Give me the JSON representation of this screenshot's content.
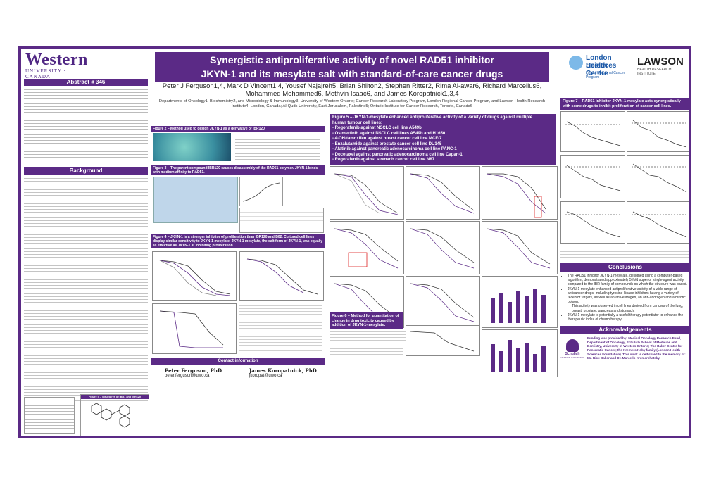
{
  "header": {
    "logo_left": "Western",
    "logo_left_sub": "UNIVERSITY · CANADA",
    "title_line1": "Synergistic antiproliferative activity of novel RAD51 inhibitor",
    "title_line2": "JKYN-1 and its mesylate salt with standard-of-care cancer drugs",
    "authors_line1": "Peter J Ferguson1,4, Mark D Vincent1,4, Yousef Najajreh5, Brian Shilton2, Stephen Ritter2, Rima Al-awar6, Richard Marcellus6,",
    "authors_line2": "Mohammed Mohammed6, Methvin Isaac6, and James Koropatnick1,3,4",
    "affiliations": "Departments of Oncology1, Biochemistry2, and Microbiology & Immunology3, University of Western Ontario; Cancer Research Laboratory Program, London Regional Cancer Program, and Lawson Health Research Institute4, London, Canada; Al-Quds University, East Jerusalem, Palestine5; Ontario Institute for Cancer Research, Toronto, Canada6",
    "logo_lhsc_line1": "London Health",
    "logo_lhsc_line2": "Sciences Centre",
    "logo_lhsc_sub": "London Regional Cancer Program",
    "logo_lawson": "LAWSON",
    "logo_lawson_sub": "HEALTH RESEARCH INSTITUTE"
  },
  "left": {
    "abstract_title": "Abstract # 346",
    "background_title": "Background"
  },
  "mid": {
    "fig2_title": "Figure 2 – Method used to design JKYN-1 as a derivative of IBR120",
    "fig3_title": "Figure 3 – The parent compound IBR120 causes disassembly of the RAD51 polymer. JKYN-1 binds with medium affinity to RAD51.",
    "fig4_title": "Figure 4 – JKYN-1 is a stronger inhibitor of proliferation than IBR120 and B02. Cultured cell lines display similar sensitivity to JKYN-1-mesylate. JKYN-1 mesylate, the salt form of JKYN-1, was equally as effective as JKYN-1 at inhibiting proliferation.",
    "contact_title": "Contact information",
    "contact1_name": "Peter Ferguson, PhD",
    "contact1_email": "peter.ferguson@uwo.ca",
    "contact2_name": "James Koropatnick, PhD",
    "contact2_email": "jkoropat@uwo.ca",
    "fig5_structures_title": "Figure 5 – Structures of IBR1 and IBR120"
  },
  "fig5": {
    "title_line1": "Figure 5 – JKYN-1-mesylate enhanced antiproliferative activity of a variety of drugs against multiple",
    "title_line2": "human tumour cell lines:",
    "items": [
      "- Regorafenib against NSCLC cell line A549b",
      "- Osimertinib against NSCLC cell lines A549b and H1650",
      "- 4-OH-tamoxifen against breast cancer cell line MCF-7",
      "- Enzalutamide against prostate cancer cell line DU145",
      "- Afatinib against pancreatic adenocarcinoma cell line PANC-1",
      "- Docetaxel against pancreatic adenocarcinoma cell line Capan-1",
      "- Regorafenib against stomach cancer cell line N87"
    ],
    "fig6_title": "Figure 6 – Method for quantitation of change in drug toxicity caused by addition of JKYN-1-mesylate."
  },
  "right": {
    "fig7_title": "Figure 7 – RAD51 inhibitor JKYN-1-mesylate acts synergistically with some drugs to inhibit proliferation of cancer cell lines.",
    "conclusions_title": "Conclusions",
    "conclusions": [
      "The RAD51 inhibitor JKYN-1-mesylate, designed using a computer-based algorithm, demonstrated approximately 5-fold superior single-agent activity compared to the IBR family of compounds on which the structure was based.",
      "JKYN-1-mesylate enhanced antiproliferative activity of a wide range of anticancer drugs, including tyrosine kinase inhibitors having a variety of receptor targets, as well as an anti-estrogen, an anti-androgen and a mitotic poison.",
      "This activity was observed in cell lines derived from cancers of the lung, breast, prostate, pancreas and stomach.",
      "JKYN-1-mesylate is potentially a useful therapy potentiator to enhance the therapeutic index of chemotherapy."
    ],
    "ack_title": "Acknowledgements",
    "ack_text": "Funding was provided by: Medical Oncology Research Fund, Department of Oncology, Schulich School of Medicine and Dentistry, University of Western Ontario; The Baker Centre for Pancreatic Cancer; the Kremers/Koby family (London Health Sciences Foundation). This work is dedicated to the memory of: Mr. Rick Baker and Dr. Marcello Kremerchatsky.",
    "schulich": "Schulich",
    "schulich_sub": "MEDICINE & DENTISTRY"
  },
  "colors": {
    "accent": "#5b2a86"
  }
}
